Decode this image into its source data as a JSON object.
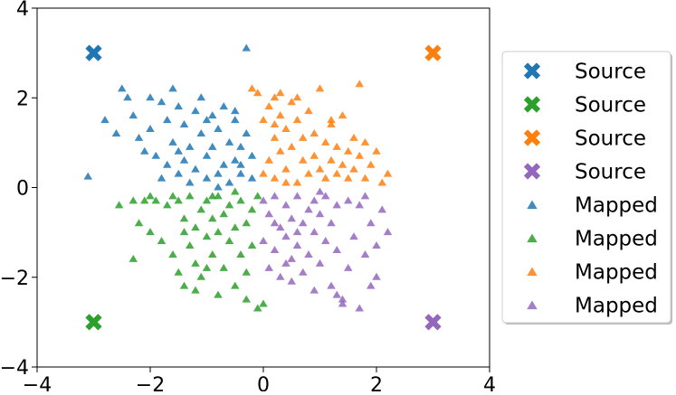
{
  "chart_data": {
    "type": "scatter",
    "title": "",
    "xlabel": "",
    "ylabel": "",
    "xlim": [
      -4,
      4
    ],
    "ylim": [
      -4,
      4
    ],
    "x_ticks": [
      -4,
      -2,
      0,
      2,
      4
    ],
    "y_ticks": [
      -4,
      -2,
      0,
      2,
      4
    ],
    "x_tick_labels": [
      "−4",
      "−2",
      "0",
      "2",
      "4"
    ],
    "y_tick_labels": [
      "−4",
      "−2",
      "0",
      "2",
      "4"
    ],
    "grid": false,
    "legend_position": "right, outside plot",
    "series": [
      {
        "name": "Source",
        "marker": "X",
        "color": "#1f77b4",
        "points": [
          [
            -3,
            3
          ]
        ]
      },
      {
        "name": "Source",
        "marker": "X",
        "color": "#2ca02c",
        "points": [
          [
            -3,
            -3
          ]
        ]
      },
      {
        "name": "Source",
        "marker": "X",
        "color": "#ff7f0e",
        "points": [
          [
            3,
            3
          ]
        ]
      },
      {
        "name": "Source",
        "marker": "X",
        "color": "#9467bd",
        "points": [
          [
            3,
            -3
          ]
        ]
      },
      {
        "name": "Mapped",
        "marker": "triangle",
        "color": "#1f77b4",
        "points": [
          [
            -3.1,
            0.24
          ],
          [
            -2.8,
            1.5
          ],
          [
            -2.6,
            1.2
          ],
          [
            -2.5,
            2.2
          ],
          [
            -2.4,
            2.0
          ],
          [
            -2.3,
            1.6
          ],
          [
            -2.2,
            1.1
          ],
          [
            -2.1,
            0.8
          ],
          [
            -2.0,
            1.3
          ],
          [
            -1.9,
            0.7
          ],
          [
            -1.8,
            1.9
          ],
          [
            -1.8,
            0.2
          ],
          [
            -1.7,
            1.5
          ],
          [
            -1.7,
            0.5
          ],
          [
            -1.6,
            2.2
          ],
          [
            -1.6,
            1.0
          ],
          [
            -1.5,
            1.8
          ],
          [
            -1.5,
            0.3
          ],
          [
            -1.4,
            1.4
          ],
          [
            -1.4,
            0.6
          ],
          [
            -1.3,
            0.9
          ],
          [
            -1.3,
            0.1
          ],
          [
            -1.2,
            1.7
          ],
          [
            -1.2,
            0.4
          ],
          [
            -1.1,
            2.0
          ],
          [
            -1.1,
            1.2
          ],
          [
            -1.0,
            0.7
          ],
          [
            -1.0,
            0.2
          ],
          [
            -0.9,
            1.6
          ],
          [
            -0.9,
            0.9
          ],
          [
            -0.8,
            0.3
          ],
          [
            -0.8,
            1.3
          ],
          [
            -0.7,
            0.5
          ],
          [
            -0.7,
            1.8
          ],
          [
            -0.6,
            1.0
          ],
          [
            -0.6,
            0.1
          ],
          [
            -0.5,
            1.5
          ],
          [
            -0.5,
            0.6
          ],
          [
            -0.4,
            0.9
          ],
          [
            -0.4,
            0.3
          ],
          [
            -0.3,
            3.1
          ],
          [
            -0.3,
            1.2
          ],
          [
            -0.2,
            0.7
          ],
          [
            -0.2,
            0.2
          ],
          [
            -0.5,
            1.7
          ],
          [
            -1.5,
            0.8
          ],
          [
            -2.0,
            2.0
          ],
          [
            -1.0,
            1.5
          ],
          [
            -0.8,
            0.0
          ],
          [
            -0.4,
            0.5
          ]
        ]
      },
      {
        "name": "Mapped",
        "marker": "triangle",
        "color": "#2ca02c",
        "points": [
          [
            -2.55,
            -0.4
          ],
          [
            -2.3,
            -0.3
          ],
          [
            -2.2,
            -0.8
          ],
          [
            -2.3,
            -1.6
          ],
          [
            -2.1,
            -0.3
          ],
          [
            -2.0,
            -0.2
          ],
          [
            -1.9,
            -0.3
          ],
          [
            -1.8,
            -1.2
          ],
          [
            -1.7,
            -0.4
          ],
          [
            -1.6,
            -1.5
          ],
          [
            -1.5,
            -0.3
          ],
          [
            -1.5,
            -1.9
          ],
          [
            -1.4,
            -0.7
          ],
          [
            -1.4,
            -2.2
          ],
          [
            -1.3,
            -0.2
          ],
          [
            -1.3,
            -1.3
          ],
          [
            -1.2,
            -0.9
          ],
          [
            -1.2,
            -1.7
          ],
          [
            -1.1,
            -0.5
          ],
          [
            -1.1,
            -2.0
          ],
          [
            -1.0,
            -0.3
          ],
          [
            -1.0,
            -1.1
          ],
          [
            -0.9,
            -0.7
          ],
          [
            -0.9,
            -1.5
          ],
          [
            -0.8,
            -0.2
          ],
          [
            -0.8,
            -1.0
          ],
          [
            -0.7,
            -0.6
          ],
          [
            -0.7,
            -1.8
          ],
          [
            -0.6,
            -0.4
          ],
          [
            -0.6,
            -1.2
          ],
          [
            -0.5,
            -0.9
          ],
          [
            -0.5,
            -2.2
          ],
          [
            -0.4,
            -0.3
          ],
          [
            -0.4,
            -1.5
          ],
          [
            -0.3,
            -0.8
          ],
          [
            -0.3,
            -1.9
          ],
          [
            -0.2,
            -0.5
          ],
          [
            -0.2,
            -1.3
          ],
          [
            -0.1,
            -0.2
          ],
          [
            -0.1,
            -2.7
          ],
          [
            0.0,
            -2.6
          ],
          [
            -0.8,
            -2.4
          ],
          [
            -1.2,
            -2.3
          ],
          [
            -1.6,
            -0.2
          ],
          [
            -2.0,
            -1.0
          ],
          [
            -0.5,
            -0.1
          ],
          [
            -1.4,
            -1.0
          ],
          [
            -0.9,
            -0.2
          ],
          [
            -0.3,
            -2.5
          ],
          [
            -1.0,
            -1.8
          ]
        ]
      },
      {
        "name": "Mapped",
        "marker": "triangle",
        "color": "#ff7f0e",
        "points": [
          [
            -0.2,
            2.2
          ],
          [
            -0.1,
            2.1
          ],
          [
            0.0,
            1.5
          ],
          [
            0.0,
            0.3
          ],
          [
            0.1,
            1.8
          ],
          [
            0.1,
            0.6
          ],
          [
            0.2,
            2.0
          ],
          [
            0.2,
            1.1
          ],
          [
            0.2,
            0.2
          ],
          [
            0.3,
            1.6
          ],
          [
            0.3,
            0.8
          ],
          [
            0.4,
            1.3
          ],
          [
            0.4,
            0.4
          ],
          [
            0.5,
            1.9
          ],
          [
            0.5,
            0.9
          ],
          [
            0.6,
            1.5
          ],
          [
            0.6,
            0.1
          ],
          [
            0.7,
            1.1
          ],
          [
            0.7,
            0.6
          ],
          [
            0.8,
            1.7
          ],
          [
            0.8,
            0.3
          ],
          [
            0.9,
            1.2
          ],
          [
            0.9,
            0.7
          ],
          [
            1.0,
            2.2
          ],
          [
            1.0,
            0.4
          ],
          [
            1.1,
            1.0
          ],
          [
            1.1,
            0.2
          ],
          [
            1.2,
            1.4
          ],
          [
            1.2,
            0.6
          ],
          [
            1.3,
            0.9
          ],
          [
            1.3,
            0.3
          ],
          [
            1.4,
            1.6
          ],
          [
            1.4,
            0.5
          ],
          [
            1.5,
            0.8
          ],
          [
            1.5,
            0.2
          ],
          [
            1.6,
            1.1
          ],
          [
            1.6,
            0.4
          ],
          [
            1.7,
            2.3
          ],
          [
            1.7,
            0.7
          ],
          [
            1.8,
            1.0
          ],
          [
            1.8,
            0.2
          ],
          [
            1.9,
            0.5
          ],
          [
            2.0,
            0.8
          ],
          [
            2.1,
            0.1
          ],
          [
            2.2,
            0.3
          ],
          [
            0.3,
            2.1
          ],
          [
            0.6,
            2.0
          ],
          [
            1.2,
            1.5
          ],
          [
            0.4,
            0.1
          ],
          [
            0.2,
            1.4
          ]
        ]
      },
      {
        "name": "Mapped",
        "marker": "triangle",
        "color": "#9467bd",
        "points": [
          [
            0.0,
            -0.3
          ],
          [
            0.0,
            -1.2
          ],
          [
            0.1,
            -0.6
          ],
          [
            0.1,
            -1.8
          ],
          [
            0.2,
            -0.2
          ],
          [
            0.2,
            -1.4
          ],
          [
            0.3,
            -0.9
          ],
          [
            0.3,
            -2.0
          ],
          [
            0.4,
            -0.4
          ],
          [
            0.4,
            -1.1
          ],
          [
            0.5,
            -0.7
          ],
          [
            0.5,
            -1.6
          ],
          [
            0.6,
            -0.2
          ],
          [
            0.6,
            -1.3
          ],
          [
            0.7,
            -0.8
          ],
          [
            0.7,
            -1.9
          ],
          [
            0.8,
            -0.5
          ],
          [
            0.8,
            -1.5
          ],
          [
            0.9,
            -1.0
          ],
          [
            0.9,
            -0.3
          ],
          [
            1.0,
            -1.7
          ],
          [
            1.0,
            -0.6
          ],
          [
            1.1,
            -1.2
          ],
          [
            1.1,
            -0.2
          ],
          [
            1.2,
            -0.8
          ],
          [
            1.2,
            -2.2
          ],
          [
            1.3,
            -0.4
          ],
          [
            1.3,
            -1.4
          ],
          [
            1.4,
            -2.5
          ],
          [
            1.5,
            -0.3
          ],
          [
            1.5,
            -1.8
          ],
          [
            1.6,
            -1.1
          ],
          [
            1.7,
            -0.4
          ],
          [
            1.8,
            -1.5
          ],
          [
            1.8,
            -0.2
          ],
          [
            1.9,
            -0.8
          ],
          [
            2.0,
            -2.0
          ],
          [
            2.0,
            -1.3
          ],
          [
            2.1,
            -0.5
          ],
          [
            2.2,
            -1.0
          ],
          [
            1.3,
            -2.4
          ],
          [
            1.4,
            -2.6
          ],
          [
            1.7,
            -2.7
          ],
          [
            0.5,
            -2.1
          ],
          [
            0.9,
            -2.3
          ],
          [
            1.9,
            -2.2
          ],
          [
            0.2,
            -0.8
          ],
          [
            0.6,
            -1.0
          ],
          [
            1.0,
            -0.1
          ],
          [
            0.4,
            -1.7
          ]
        ]
      }
    ]
  }
}
